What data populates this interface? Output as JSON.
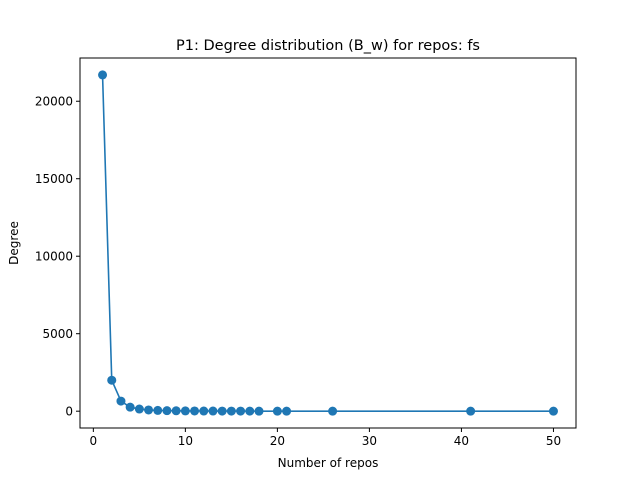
{
  "chart_data": {
    "type": "line",
    "title": "P1: Degree distribution (B_w) for repos: fs",
    "xlabel": "Number of repos",
    "ylabel": "Degree",
    "xlim": [
      -1.45,
      52.45
    ],
    "ylim": [
      -1085,
      22790
    ],
    "x_ticks": [
      0,
      10,
      20,
      30,
      40,
      50
    ],
    "y_ticks": [
      0,
      5000,
      10000,
      15000,
      20000
    ],
    "grid": false,
    "markers": true,
    "color": "#1f77b4",
    "series": [
      {
        "x": [
          1,
          2,
          3,
          4,
          5,
          6,
          7,
          8,
          9,
          10,
          11,
          12,
          13,
          14,
          15,
          16,
          17,
          18,
          20,
          21,
          26,
          41,
          50
        ],
        "values": [
          21700,
          2000,
          650,
          260,
          140,
          80,
          50,
          35,
          25,
          18,
          14,
          11,
          9,
          7,
          6,
          5,
          4,
          3,
          3,
          2,
          2,
          1,
          1
        ]
      }
    ]
  }
}
